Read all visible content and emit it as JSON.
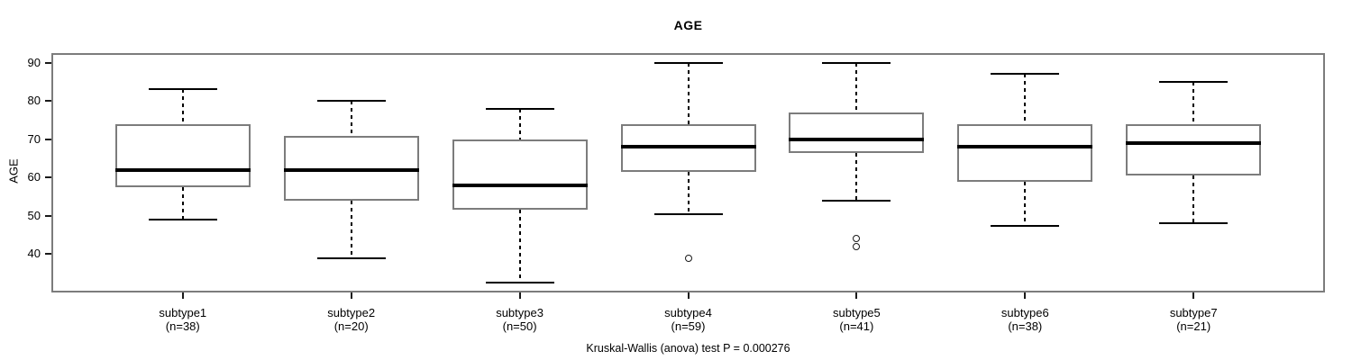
{
  "header": {
    "title": "AGE"
  },
  "chart_data": {
    "type": "boxplot",
    "title": "AGE",
    "ylabel": "AGE",
    "xlabel": "",
    "ylim": [
      30,
      92.5
    ],
    "y_ticks": [
      40,
      50,
      60,
      70,
      80,
      90
    ],
    "grid": false,
    "orientation": "vertical",
    "groups": [
      {
        "label": "subtype1",
        "n_label": "(n=38)",
        "n": 38,
        "low": 49,
        "q1": 57.5,
        "median": 62,
        "q3": 74,
        "high": 83,
        "outliers": []
      },
      {
        "label": "subtype2",
        "n_label": "(n=20)",
        "n": 20,
        "low": 39,
        "q1": 54,
        "median": 62,
        "q3": 71,
        "high": 80,
        "outliers": []
      },
      {
        "label": "subtype3",
        "n_label": "(n=50)",
        "n": 50,
        "low": 32.5,
        "q1": 51.5,
        "median": 58,
        "q3": 70,
        "high": 78,
        "outliers": []
      },
      {
        "label": "subtype4",
        "n_label": "(n=59)",
        "n": 59,
        "low": 50.5,
        "q1": 61.5,
        "median": 68,
        "q3": 74,
        "high": 90,
        "outliers": [
          39
        ]
      },
      {
        "label": "subtype5",
        "n_label": "(n=41)",
        "n": 41,
        "low": 54,
        "q1": 66.5,
        "median": 70,
        "q3": 77,
        "high": 90,
        "outliers": [
          44,
          42
        ]
      },
      {
        "label": "subtype6",
        "n_label": "(n=38)",
        "n": 38,
        "low": 47.5,
        "q1": 59,
        "median": 68,
        "q3": 74,
        "high": 87,
        "outliers": []
      },
      {
        "label": "subtype7",
        "n_label": "(n=21)",
        "n": 21,
        "low": 48,
        "q1": 60.5,
        "median": 69,
        "q3": 74,
        "high": 85,
        "outliers": []
      }
    ],
    "annotation": "Kruskal-Wallis (anova) test P = 0.000276",
    "legend": null
  },
  "colors": {
    "background": "#ffffff",
    "frame_border": "#7c7c7c",
    "box_border": "#7c7c7c",
    "box_fill": "#ffffff",
    "median": "#000000",
    "whisker": "#000000",
    "outlier_stroke": "#1a1a1a",
    "text": "#000000"
  }
}
